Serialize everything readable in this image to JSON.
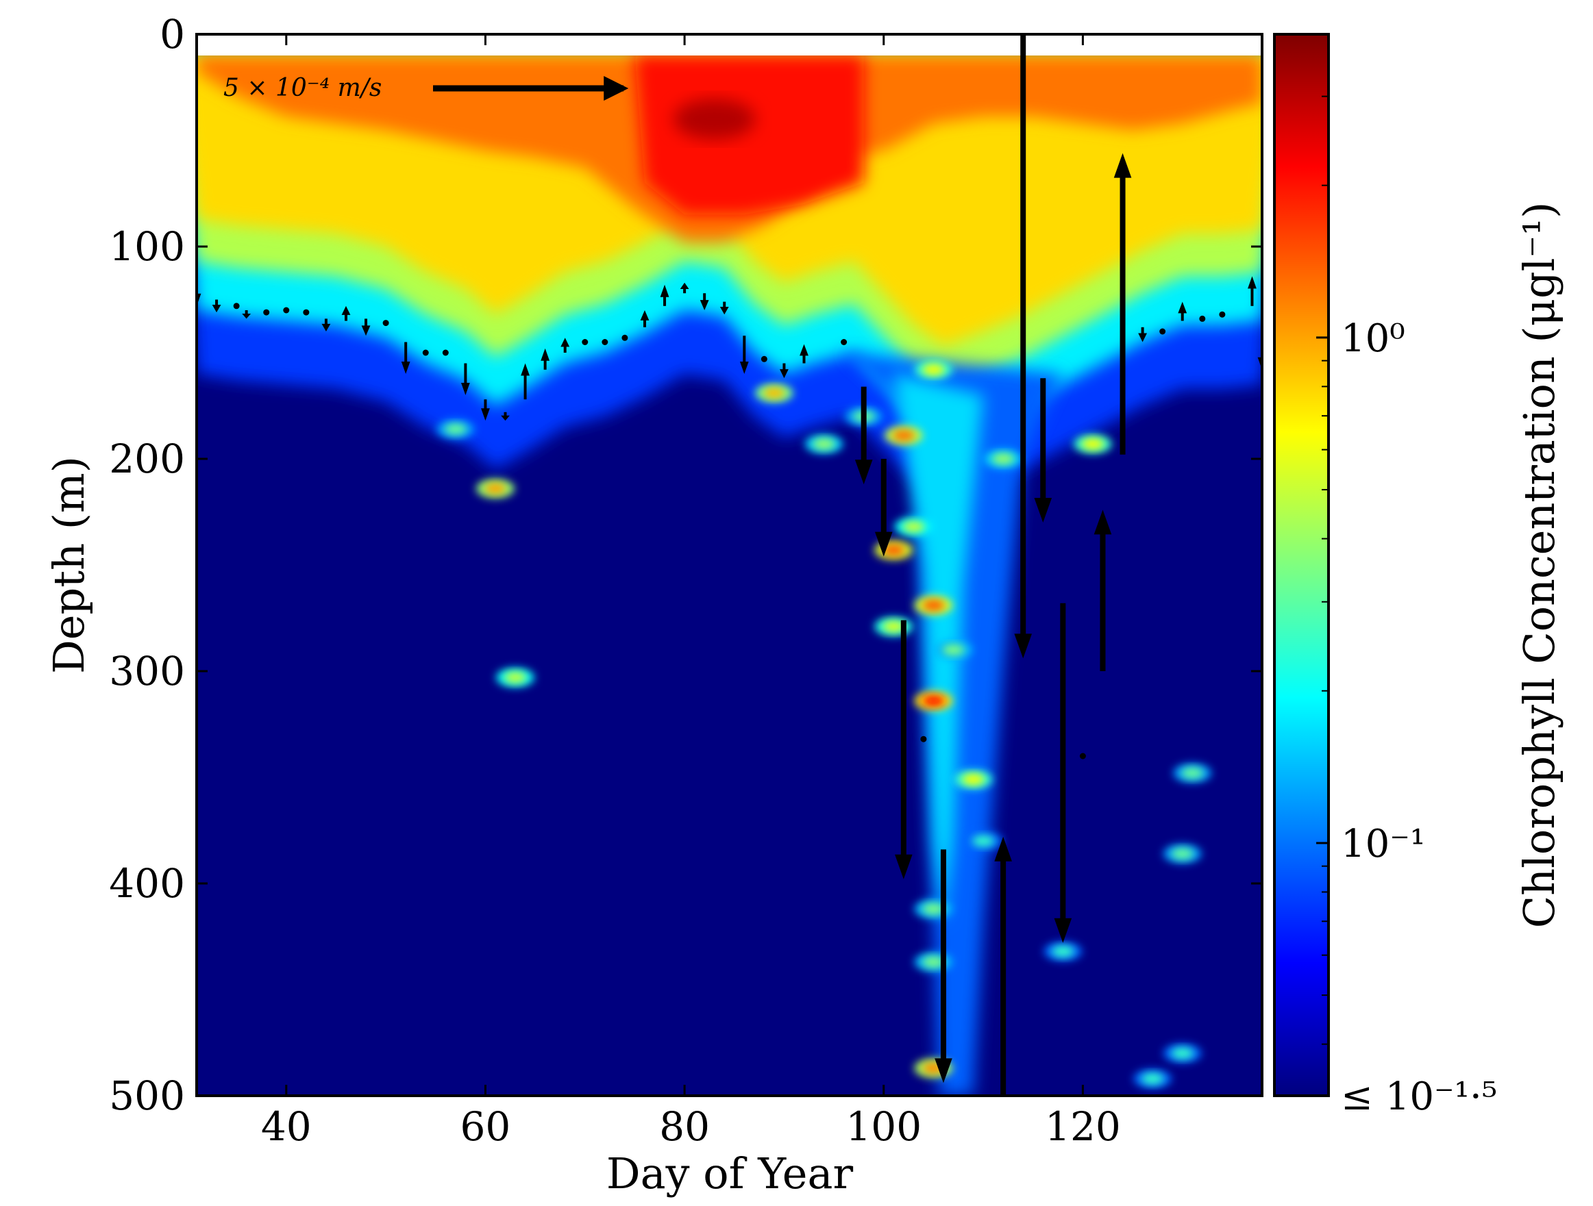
{
  "chart_data": {
    "type": "heatmap",
    "xlabel": "Day of Year",
    "ylabel": "Depth (m)",
    "x_ticks": [
      40,
      60,
      80,
      100,
      120
    ],
    "y_ticks": [
      0,
      100,
      200,
      300,
      400,
      500
    ],
    "xlim": [
      31,
      138
    ],
    "ylim": [
      0,
      500
    ],
    "y_inverted": true,
    "colorbar": {
      "label": "Chlorophyll Concentration (μgl⁻¹)",
      "scale": "log",
      "min_log10": -1.5,
      "max_log10": 0.6,
      "ticks": [
        {
          "log10": 0,
          "label": "10⁰"
        },
        {
          "log10": -1,
          "label": "10⁻¹"
        },
        {
          "log10": -1.5,
          "label": "≤ 10⁻¹·⁵"
        }
      ],
      "colormap": "jet"
    },
    "colormap_stops": [
      "#00007f",
      "#0000ff",
      "#007fff",
      "#00ffff",
      "#7fff7f",
      "#ffff00",
      "#ff7f00",
      "#ff0000",
      "#7f0000"
    ],
    "surface_layer_top_depth": 10,
    "mixed_layer_depth": [
      [
        31,
        125
      ],
      [
        35,
        128
      ],
      [
        40,
        130
      ],
      [
        45,
        132
      ],
      [
        50,
        138
      ],
      [
        54,
        150
      ],
      [
        58,
        158
      ],
      [
        61,
        170
      ],
      [
        64,
        162
      ],
      [
        68,
        150
      ],
      [
        72,
        145
      ],
      [
        76,
        136
      ],
      [
        80,
        125
      ],
      [
        84,
        128
      ],
      [
        87,
        145
      ],
      [
        90,
        155
      ],
      [
        93,
        150
      ],
      [
        97,
        145
      ],
      [
        100,
        160
      ],
      [
        103,
        175
      ],
      [
        106,
        185
      ],
      [
        110,
        178
      ],
      [
        114,
        170
      ],
      [
        118,
        160
      ],
      [
        122,
        150
      ],
      [
        126,
        140
      ],
      [
        130,
        132
      ],
      [
        134,
        132
      ],
      [
        138,
        130
      ]
    ],
    "surface_bloom": [
      [
        31,
        0.05
      ],
      [
        35,
        0.12
      ],
      [
        40,
        0.18
      ],
      [
        45,
        0.2
      ],
      [
        50,
        0.22
      ],
      [
        55,
        0.25
      ],
      [
        60,
        0.28
      ],
      [
        65,
        0.3
      ],
      [
        70,
        0.33
      ],
      [
        75,
        0.45
      ],
      [
        80,
        0.55
      ],
      [
        84,
        0.55
      ],
      [
        88,
        0.5
      ],
      [
        92,
        0.42
      ],
      [
        96,
        0.3
      ],
      [
        100,
        0.28
      ],
      [
        105,
        0.2
      ],
      [
        110,
        0.18
      ],
      [
        115,
        0.18
      ],
      [
        120,
        0.2
      ],
      [
        125,
        0.22
      ],
      [
        130,
        0.2
      ],
      [
        135,
        0.16
      ],
      [
        138,
        0.14
      ]
    ],
    "patches": [
      {
        "day": 61,
        "depth": 214,
        "log10": 0.0
      },
      {
        "day": 63,
        "depth": 303,
        "log10": -0.3
      },
      {
        "day": 89,
        "depth": 169,
        "log10": -0.05
      },
      {
        "day": 102,
        "depth": 189,
        "log10": 0.1
      },
      {
        "day": 101,
        "depth": 243,
        "log10": 0.15
      },
      {
        "day": 101,
        "depth": 279,
        "log10": -0.25
      },
      {
        "day": 103,
        "depth": 232,
        "log10": -0.3
      },
      {
        "day": 105,
        "depth": 269,
        "log10": 0.15
      },
      {
        "day": 105,
        "depth": 314,
        "log10": 0.3
      },
      {
        "day": 105,
        "depth": 158,
        "log10": -0.2
      },
      {
        "day": 109,
        "depth": 351,
        "log10": -0.2
      },
      {
        "day": 105,
        "depth": 487,
        "log10": 0.05
      },
      {
        "day": 121,
        "depth": 193,
        "log10": -0.2
      },
      {
        "day": 94,
        "depth": 193,
        "log10": -0.4
      },
      {
        "day": 98,
        "depth": 180,
        "log10": -0.5
      },
      {
        "day": 57,
        "depth": 186,
        "log10": -0.5
      },
      {
        "day": 105,
        "depth": 412,
        "log10": -0.45
      },
      {
        "day": 105,
        "depth": 437,
        "log10": -0.45
      },
      {
        "day": 107,
        "depth": 290,
        "log10": -0.45
      },
      {
        "day": 118,
        "depth": 432,
        "log10": -0.6
      },
      {
        "day": 131,
        "depth": 348,
        "log10": -0.5
      },
      {
        "day": 130,
        "depth": 386,
        "log10": -0.5
      },
      {
        "day": 127,
        "depth": 492,
        "log10": -0.6
      },
      {
        "day": 130,
        "depth": 480,
        "log10": -0.6
      },
      {
        "day": 110,
        "depth": 380,
        "log10": -0.6
      },
      {
        "day": 112,
        "depth": 200,
        "log10": -0.4
      }
    ],
    "velocity_scale_label": "5 × 10⁻⁴ m/s",
    "velocity_scale_ms": 0.0005,
    "velocity_arrows_large": [
      {
        "day": 98,
        "from": 166,
        "to": 212
      },
      {
        "day": 100,
        "from": 200,
        "to": 246
      },
      {
        "day": 102,
        "from": 276,
        "to": 398
      },
      {
        "day": 106,
        "from": 384,
        "to": 494
      },
      {
        "day": 112,
        "from": 500,
        "to": 378
      },
      {
        "day": 114,
        "from": 0,
        "to": 294
      },
      {
        "day": 116,
        "from": 162,
        "to": 230
      },
      {
        "day": 118,
        "from": 268,
        "to": 428
      },
      {
        "day": 122,
        "from": 300,
        "to": 224
      },
      {
        "day": 124,
        "from": 198,
        "to": 56
      }
    ],
    "velocity_arrows_small": [
      {
        "day": 31,
        "from": 115,
        "to": 128
      },
      {
        "day": 33,
        "from": 125,
        "to": 131
      },
      {
        "day": 36,
        "from": 130,
        "to": 134
      },
      {
        "day": 44,
        "from": 134,
        "to": 140
      },
      {
        "day": 46,
        "from": 135,
        "to": 128
      },
      {
        "day": 48,
        "from": 134,
        "to": 142
      },
      {
        "day": 52,
        "from": 145,
        "to": 160
      },
      {
        "day": 58,
        "from": 155,
        "to": 170
      },
      {
        "day": 60,
        "from": 172,
        "to": 182
      },
      {
        "day": 62,
        "from": 178,
        "to": 182
      },
      {
        "day": 64,
        "from": 172,
        "to": 155
      },
      {
        "day": 66,
        "from": 158,
        "to": 148
      },
      {
        "day": 68,
        "from": 150,
        "to": 143
      },
      {
        "day": 76,
        "from": 138,
        "to": 130
      },
      {
        "day": 78,
        "from": 128,
        "to": 118
      },
      {
        "day": 80,
        "from": 122,
        "to": 117
      },
      {
        "day": 82,
        "from": 122,
        "to": 130
      },
      {
        "day": 84,
        "from": 126,
        "to": 132
      },
      {
        "day": 86,
        "from": 142,
        "to": 160
      },
      {
        "day": 90,
        "from": 155,
        "to": 162
      },
      {
        "day": 92,
        "from": 155,
        "to": 146
      },
      {
        "day": 126,
        "from": 138,
        "to": 145
      },
      {
        "day": 130,
        "from": 135,
        "to": 126
      },
      {
        "day": 137,
        "from": 128,
        "to": 114
      },
      {
        "day": 138,
        "from": 132,
        "to": 158
      }
    ],
    "velocity_dots": [
      {
        "day": 35,
        "depth": 128
      },
      {
        "day": 38,
        "depth": 131
      },
      {
        "day": 40,
        "depth": 130
      },
      {
        "day": 42,
        "depth": 131
      },
      {
        "day": 50,
        "depth": 136
      },
      {
        "day": 54,
        "depth": 150
      },
      {
        "day": 56,
        "depth": 150
      },
      {
        "day": 70,
        "depth": 145
      },
      {
        "day": 72,
        "depth": 145
      },
      {
        "day": 74,
        "depth": 143
      },
      {
        "day": 88,
        "depth": 153
      },
      {
        "day": 96,
        "depth": 145
      },
      {
        "day": 104,
        "depth": 332
      },
      {
        "day": 120,
        "depth": 340
      },
      {
        "day": 128,
        "depth": 140
      },
      {
        "day": 132,
        "depth": 134
      },
      {
        "day": 134,
        "depth": 132
      }
    ]
  }
}
